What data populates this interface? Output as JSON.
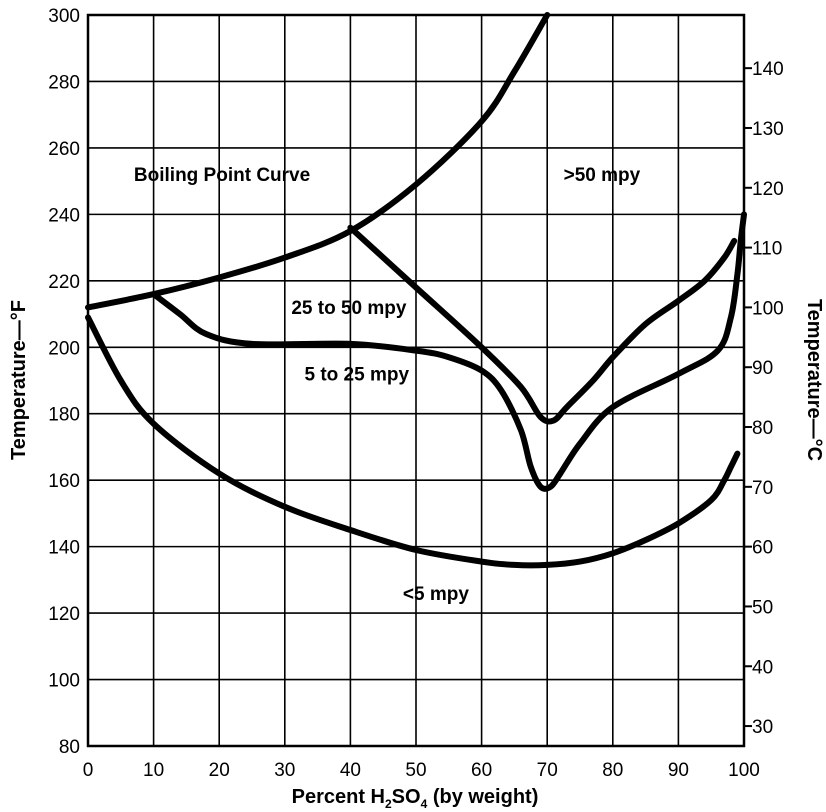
{
  "chart_data": {
    "type": "line",
    "xlabel_parts": [
      "Percent H",
      "2",
      "SO",
      "4",
      " (by weight)"
    ],
    "ylabel_left": "Temperature—°F",
    "ylabel_right": "Temperature—°C",
    "xlim": [
      0,
      100
    ],
    "ylim": [
      80,
      300
    ],
    "ylim_right_c": [
      26.67,
      148.89
    ],
    "x_ticks": [
      0,
      10,
      20,
      30,
      40,
      50,
      60,
      70,
      80,
      90,
      100
    ],
    "y_ticks": [
      80,
      100,
      120,
      140,
      160,
      180,
      200,
      220,
      240,
      260,
      280,
      300
    ],
    "y_ticks_right": [
      30,
      40,
      50,
      60,
      70,
      80,
      90,
      100,
      110,
      120,
      130,
      140
    ],
    "grid": true,
    "series": [
      {
        "x": [
          0,
          10,
          20,
          30,
          40,
          50,
          60,
          65,
          70
        ],
        "y": [
          212,
          216,
          221,
          227,
          235,
          249,
          268,
          283,
          300
        ]
      },
      {
        "x": [
          0,
          5,
          10,
          20,
          30,
          40,
          50,
          60,
          65,
          70,
          75,
          80,
          85,
          90,
          95,
          97,
          98,
          99
        ],
        "y": [
          209,
          190,
          177,
          162,
          152,
          145,
          139,
          135.5,
          134.5,
          134.5,
          135.5,
          138,
          142,
          147,
          154,
          160,
          164,
          168
        ]
      },
      {
        "x": [
          10,
          14,
          18,
          25,
          40,
          50,
          55,
          60,
          63,
          66,
          67.5,
          69,
          70.5,
          72,
          75,
          80,
          90,
          96,
          98,
          99,
          99.5,
          100
        ],
        "y": [
          216,
          210,
          204,
          201,
          201,
          199,
          197,
          193,
          187,
          175,
          164,
          158,
          158,
          162,
          171,
          182,
          192,
          199,
          209,
          222,
          232,
          240
        ]
      },
      {
        "x": [
          40,
          50,
          60,
          66,
          69,
          71,
          73,
          77,
          80,
          85,
          90,
          94,
          97,
          98.5
        ],
        "y": [
          236,
          218,
          200,
          188,
          179,
          178,
          182,
          190,
          197,
          207,
          214,
          220,
          227,
          232
        ]
      }
    ],
    "annotations": [
      {
        "text": "Boiling Point Curve",
        "x": 7,
        "y": 250
      },
      {
        "text": ">50 mpy",
        "x": 72.5,
        "y": 250
      },
      {
        "text": "25 to 50 mpy",
        "x": 31,
        "y": 210
      },
      {
        "text": "5 to 25 mpy",
        "x": 33,
        "y": 190
      },
      {
        "text": "<5 mpy",
        "x": 48,
        "y": 124
      }
    ]
  }
}
